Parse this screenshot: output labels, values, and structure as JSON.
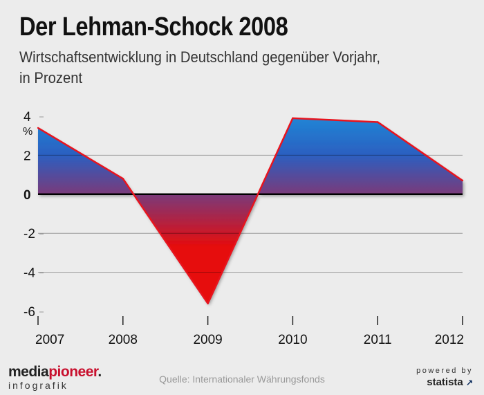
{
  "header": {
    "title": "Der Lehman-Schock 2008",
    "subtitle_line1": "Wirtschaftsentwicklung in Deutschland gegenüber Vorjahr,",
    "subtitle_line2": "in Prozent"
  },
  "footer": {
    "source": "Quelle: Internationaler Währungsfonds",
    "brand_main_a": "media",
    "brand_main_b": "pioneer",
    "brand_dot": ".",
    "brand_sub": "infografik",
    "powered_by": "powered by",
    "powered_name": "statista"
  },
  "colors": {
    "positive_top": "#1f86d6",
    "positive_bottom": "#7a3a7a",
    "negative": "#e60c0c",
    "outline": "#e8141e",
    "background": "#ececec"
  },
  "chart_data": {
    "type": "area",
    "x": [
      "2007",
      "2008",
      "2009",
      "2010",
      "2011",
      "2012"
    ],
    "values": [
      3.4,
      0.8,
      -5.6,
      3.9,
      3.7,
      0.7
    ],
    "ylabel": "%",
    "ylim": [
      -6,
      4
    ],
    "yticks": [
      4,
      2,
      0,
      -2,
      -4,
      -6
    ],
    "ytick_labels": [
      "4",
      "2",
      "0",
      "-2",
      "-4",
      "-6"
    ],
    "grid": true,
    "legend": "none"
  }
}
